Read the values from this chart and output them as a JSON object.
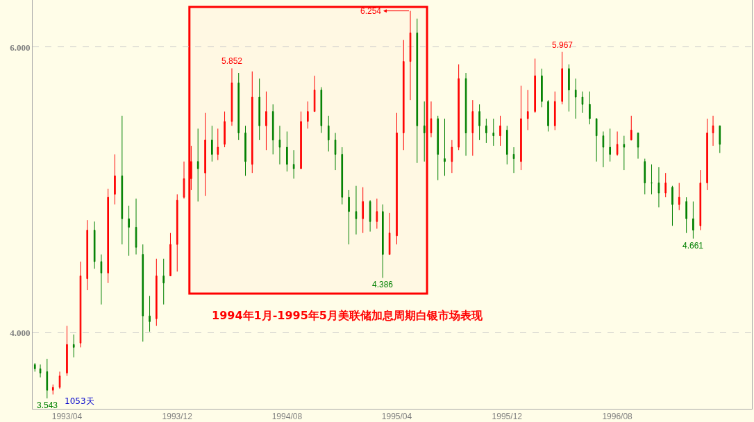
{
  "chart_data": {
    "type": "candlestick",
    "x": [
      "1993-01-20",
      "1993-02-01",
      "1993-02-16",
      "1993-03-01",
      "1993-03-16",
      "1993-04-01",
      "1993-04-16",
      "1993-05-01",
      "1993-05-16",
      "1993-06-01",
      "1993-06-16",
      "1993-07-01",
      "1993-07-16",
      "1993-08-01",
      "1993-08-16",
      "1993-09-01",
      "1993-09-16",
      "1993-10-01",
      "1993-10-16",
      "1993-11-01",
      "1993-11-16",
      "1993-12-01",
      "1993-12-16",
      "1994-01-01",
      "1994-01-16",
      "1994-02-01",
      "1994-02-16",
      "1994-03-01",
      "1994-03-16",
      "1994-04-01",
      "1994-04-16",
      "1994-05-01",
      "1994-05-16",
      "1994-06-01",
      "1994-06-16",
      "1994-07-01",
      "1994-07-16",
      "1994-08-01",
      "1994-08-16",
      "1994-09-01",
      "1994-09-16",
      "1994-10-01",
      "1994-10-16",
      "1994-11-01",
      "1994-11-16",
      "1994-12-01",
      "1994-12-16",
      "1995-01-01",
      "1995-01-16",
      "1995-02-01",
      "1995-02-16",
      "1995-03-01",
      "1995-03-16",
      "1995-04-01",
      "1995-04-16",
      "1995-05-01",
      "1995-05-16",
      "1995-06-01",
      "1995-06-16",
      "1995-07-01",
      "1995-07-16",
      "1995-08-01",
      "1995-08-16",
      "1995-09-01",
      "1995-09-16",
      "1995-10-01",
      "1995-10-16",
      "1995-11-01",
      "1995-11-16",
      "1995-12-01",
      "1995-12-16",
      "1996-01-01",
      "1996-01-16",
      "1996-02-01",
      "1996-02-16",
      "1996-03-01",
      "1996-03-16",
      "1996-04-01",
      "1996-04-16",
      "1996-05-01",
      "1996-05-16",
      "1996-06-01",
      "1996-06-16",
      "1996-07-01",
      "1996-07-16",
      "1996-08-01",
      "1996-08-16",
      "1996-09-01",
      "1996-09-16",
      "1996-10-01",
      "1996-10-16",
      "1996-11-01",
      "1996-11-16",
      "1996-12-01",
      "1996-12-16",
      "1997-01-01",
      "1997-01-16",
      "1997-02-01",
      "1997-02-16",
      "1997-03-01",
      "1997-03-16"
    ],
    "ohlc": [
      [
        3.78,
        3.79,
        3.73,
        3.75
      ],
      [
        3.75,
        3.78,
        3.69,
        3.72
      ],
      [
        3.73,
        3.82,
        3.543,
        3.6
      ],
      [
        3.6,
        3.64,
        3.57,
        3.62
      ],
      [
        3.62,
        3.73,
        3.61,
        3.7
      ],
      [
        3.72,
        4.05,
        3.7,
        3.92
      ],
      [
        3.92,
        3.99,
        3.83,
        3.9
      ],
      [
        3.93,
        4.5,
        3.9,
        4.4
      ],
      [
        4.38,
        4.79,
        4.3,
        4.72
      ],
      [
        4.72,
        4.78,
        4.45,
        4.5
      ],
      [
        4.5,
        4.55,
        4.2,
        4.42
      ],
      [
        4.42,
        5.01,
        4.35,
        4.95
      ],
      [
        4.97,
        5.25,
        4.9,
        5.1
      ],
      [
        5.1,
        5.52,
        4.62,
        4.8
      ],
      [
        4.8,
        4.89,
        4.54,
        4.74
      ],
      [
        4.74,
        4.94,
        4.55,
        4.6
      ],
      [
        4.55,
        4.62,
        3.94,
        4.12
      ],
      [
        4.12,
        4.26,
        4.01,
        4.08
      ],
      [
        4.1,
        4.52,
        4.05,
        4.4
      ],
      [
        4.4,
        4.52,
        4.2,
        4.35
      ],
      [
        4.4,
        4.7,
        4.4,
        4.62
      ],
      [
        4.62,
        4.97,
        4.43,
        4.93
      ],
      [
        4.95,
        5.2,
        4.94,
        5.08
      ],
      [
        5.08,
        5.31,
        5.0,
        5.2
      ],
      [
        5.2,
        5.43,
        4.92,
        5.15
      ],
      [
        5.12,
        5.54,
        4.96,
        5.35
      ],
      [
        5.35,
        5.45,
        5.2,
        5.25
      ],
      [
        5.25,
        5.43,
        5.21,
        5.3
      ],
      [
        5.32,
        5.55,
        5.3,
        5.48
      ],
      [
        5.48,
        5.852,
        5.45,
        5.75
      ],
      [
        5.75,
        5.82,
        5.35,
        5.4
      ],
      [
        5.4,
        5.45,
        5.1,
        5.2
      ],
      [
        5.18,
        5.83,
        5.12,
        5.65
      ],
      [
        5.65,
        5.78,
        5.35,
        5.45
      ],
      [
        5.45,
        5.69,
        5.28,
        5.55
      ],
      [
        5.55,
        5.6,
        5.25,
        5.35
      ],
      [
        5.35,
        5.45,
        5.18,
        5.3
      ],
      [
        5.3,
        5.41,
        5.13,
        5.18
      ],
      [
        5.18,
        5.28,
        5.08,
        5.15
      ],
      [
        5.15,
        5.55,
        5.15,
        5.48
      ],
      [
        5.48,
        5.62,
        5.43,
        5.55
      ],
      [
        5.55,
        5.8,
        5.55,
        5.7
      ],
      [
        5.7,
        5.72,
        5.4,
        5.45
      ],
      [
        5.45,
        5.52,
        5.27,
        5.35
      ],
      [
        5.35,
        5.4,
        5.14,
        5.25
      ],
      [
        5.25,
        5.3,
        4.9,
        4.95
      ],
      [
        4.95,
        5.0,
        4.62,
        4.85
      ],
      [
        4.85,
        5.03,
        4.69,
        4.8
      ],
      [
        4.8,
        5.02,
        4.7,
        4.92
      ],
      [
        4.92,
        4.93,
        4.71,
        4.78
      ],
      [
        4.78,
        4.94,
        4.73,
        4.85
      ],
      [
        4.85,
        4.9,
        4.386,
        4.55
      ],
      [
        4.55,
        4.84,
        4.55,
        4.7
      ],
      [
        4.68,
        5.54,
        4.62,
        5.4
      ],
      [
        5.4,
        6.05,
        5.28,
        5.9
      ],
      [
        5.9,
        6.254,
        5.63,
        6.1
      ],
      [
        6.1,
        6.2,
        5.19,
        5.45
      ],
      [
        5.45,
        5.62,
        5.2,
        5.4
      ],
      [
        5.4,
        5.62,
        5.37,
        5.5
      ],
      [
        5.5,
        5.52,
        5.07,
        5.25
      ],
      [
        5.22,
        5.5,
        5.1,
        5.2
      ],
      [
        5.2,
        5.35,
        5.12,
        5.3
      ],
      [
        5.3,
        5.88,
        5.28,
        5.78
      ],
      [
        5.78,
        5.82,
        5.24,
        5.4
      ],
      [
        5.4,
        5.63,
        5.24,
        5.55
      ],
      [
        5.55,
        5.6,
        5.35,
        5.45
      ],
      [
        5.45,
        5.5,
        5.33,
        5.4
      ],
      [
        5.4,
        5.5,
        5.31,
        5.38
      ],
      [
        5.38,
        5.52,
        5.31,
        5.45
      ],
      [
        5.42,
        5.45,
        5.18,
        5.25
      ],
      [
        5.25,
        5.3,
        5.12,
        5.22
      ],
      [
        5.2,
        5.73,
        5.14,
        5.5
      ],
      [
        5.5,
        5.7,
        5.42,
        5.55
      ],
      [
        5.55,
        5.92,
        5.54,
        5.8
      ],
      [
        5.8,
        5.85,
        5.58,
        5.62
      ],
      [
        5.62,
        5.63,
        5.41,
        5.45
      ],
      [
        5.45,
        5.69,
        5.42,
        5.62
      ],
      [
        5.62,
        5.967,
        5.6,
        5.85
      ],
      [
        5.85,
        5.88,
        5.55,
        5.7
      ],
      [
        5.7,
        5.78,
        5.5,
        5.65
      ],
      [
        5.65,
        5.69,
        5.54,
        5.6
      ],
      [
        5.6,
        5.69,
        5.46,
        5.5
      ],
      [
        5.5,
        5.5,
        5.2,
        5.38
      ],
      [
        5.38,
        5.41,
        5.16,
        5.3
      ],
      [
        5.3,
        5.43,
        5.2,
        5.25
      ],
      [
        5.25,
        5.41,
        5.24,
        5.32
      ],
      [
        5.32,
        5.38,
        5.14,
        5.3
      ],
      [
        5.35,
        5.52,
        5.35,
        5.42
      ],
      [
        5.4,
        5.4,
        5.22,
        5.3
      ],
      [
        5.2,
        5.22,
        4.97,
        5.05
      ],
      [
        5.05,
        5.18,
        4.97,
        5.05
      ],
      [
        5.05,
        5.16,
        4.88,
        4.98
      ],
      [
        4.98,
        5.12,
        4.95,
        5.05
      ],
      [
        5.02,
        5.03,
        4.75,
        4.9
      ],
      [
        4.9,
        5.05,
        4.86,
        4.95
      ],
      [
        4.92,
        4.95,
        4.7,
        4.8
      ],
      [
        4.8,
        4.92,
        4.661,
        4.72
      ],
      [
        4.75,
        5.14,
        4.72,
        5.05
      ],
      [
        5.05,
        5.5,
        5.0,
        5.4
      ],
      [
        5.4,
        5.52,
        5.31,
        5.45
      ],
      [
        5.45,
        5.45,
        5.26,
        5.32
      ]
    ],
    "colors": [
      "#008000",
      "#008000",
      "#008000",
      "#ff0000",
      "#ff0000",
      "#ff0000",
      "#008000",
      "#ff0000",
      "#ff0000",
      "#008000",
      "#008000",
      "#ff0000",
      "#ff0000",
      "#008000",
      "#008000",
      "#008000",
      "#008000",
      "#008000",
      "#ff0000",
      "#008000",
      "#ff0000",
      "#ff0000",
      "#ff0000",
      "#ff0000",
      "#008000",
      "#ff0000",
      "#008000",
      "#ff0000",
      "#ff0000",
      "#ff0000",
      "#008000",
      "#008000",
      "#ff0000",
      "#008000",
      "#ff0000",
      "#008000",
      "#008000",
      "#008000",
      "#008000",
      "#ff0000",
      "#ff0000",
      "#ff0000",
      "#008000",
      "#008000",
      "#008000",
      "#008000",
      "#008000",
      "#008000",
      "#ff0000",
      "#008000",
      "#ff0000",
      "#008000",
      "#ff0000",
      "#ff0000",
      "#ff0000",
      "#ff0000",
      "#008000",
      "#008000",
      "#ff0000",
      "#008000",
      "#008000",
      "#ff0000",
      "#ff0000",
      "#008000",
      "#ff0000",
      "#008000",
      "#008000",
      "#008000",
      "#ff0000",
      "#008000",
      "#008000",
      "#ff0000",
      "#ff0000",
      "#ff0000",
      "#008000",
      "#008000",
      "#ff0000",
      "#ff0000",
      "#008000",
      "#008000",
      "#008000",
      "#008000",
      "#008000",
      "#008000",
      "#008000",
      "#ff0000",
      "#008000",
      "#ff0000",
      "#008000",
      "#008000",
      "#008000",
      "#008000",
      "#ff0000",
      "#008000",
      "#ff0000",
      "#008000",
      "#008000",
      "#ff0000",
      "#ff0000",
      "#ff0000",
      "#008000"
    ],
    "xlim": [
      "1993-01-15",
      "1997-05-26"
    ],
    "xticks": [
      {
        "value": "1993-04-01",
        "label": "1993/04"
      },
      {
        "value": "1993-12-01",
        "label": "1993/12"
      },
      {
        "value": "1994-08-01",
        "label": "1994/08"
      },
      {
        "value": "1995-04-01",
        "label": "1995/04"
      },
      {
        "value": "1995-12-01",
        "label": "1995/12"
      },
      {
        "value": "1996-08-01",
        "label": "1996/08"
      }
    ],
    "ylim": [
      3.47,
      6.33
    ],
    "yticks": [
      {
        "value": 4,
        "label": "4.000"
      },
      {
        "value": 6,
        "label": "6.000"
      }
    ],
    "grid": "y",
    "bands": [
      {
        "axis": "x",
        "from": "1993-12-28",
        "to": "1995-06-07",
        "label": "1994年1月-1995年5月美联储加息周期白银市场表现",
        "color": "#ff0000"
      }
    ],
    "annotations": [
      {
        "text": "5.852",
        "x": "1994-04-01",
        "y": 5.852
      },
      {
        "text": "6.254",
        "x": "1995-05-01",
        "y": 6.254
      },
      {
        "text": "4.386",
        "x": "1995-03-01",
        "y": 4.386
      },
      {
        "text": "5.967",
        "x": "1996-04-01",
        "y": 5.967
      },
      {
        "text": "4.661",
        "x": "1997-01-16",
        "y": 4.661
      },
      {
        "text": "3.543",
        "x": "1993-02-16",
        "y": 3.543
      },
      "1053天"
    ]
  }
}
